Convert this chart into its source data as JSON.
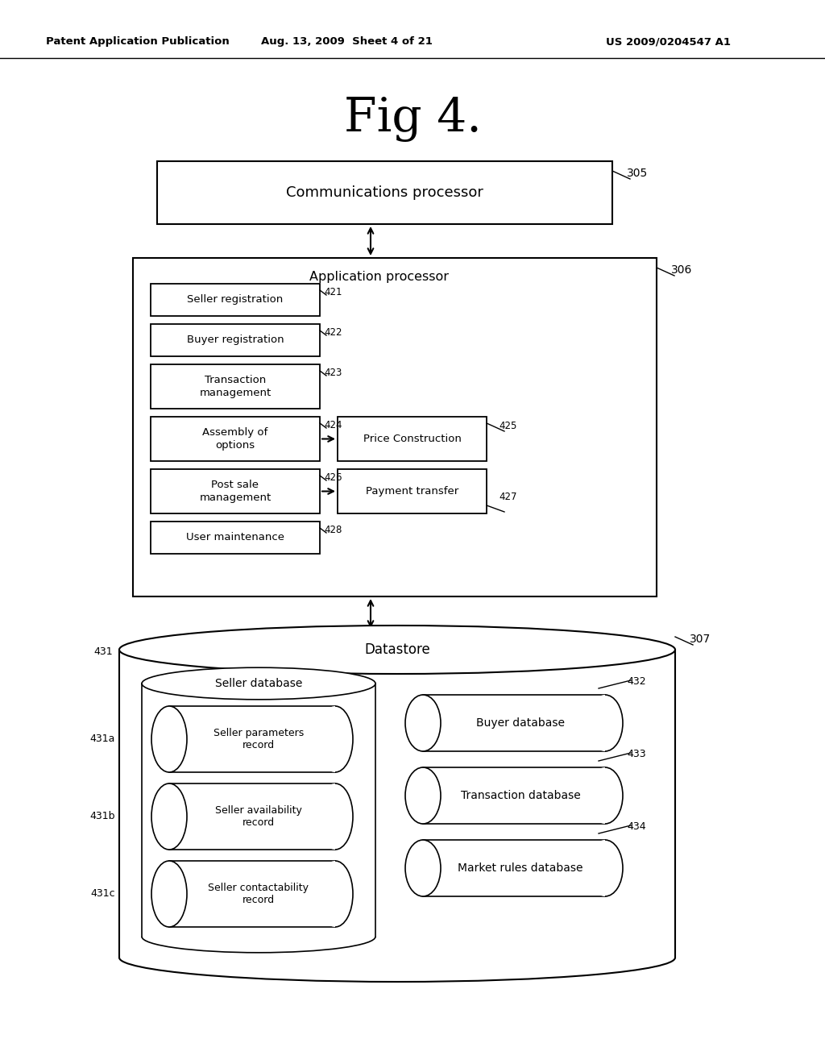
{
  "bg_color": "#ffffff",
  "header_text": "Patent Application Publication",
  "header_date": "Aug. 13, 2009  Sheet 4 of 21",
  "header_patent": "US 2009/0204547 A1",
  "fig_title": "Fig 4.",
  "comm_proc_label": "Communications processor",
  "comm_proc_ref": "305",
  "app_proc_label": "Application processor",
  "app_proc_ref": "306",
  "datastore_label": "Datastore",
  "datastore_ref": "307",
  "db_outer_label": "Seller database",
  "db_outer_ref": "431",
  "db_left": [
    {
      "label": "Seller parameters\nrecord",
      "ref": "431a"
    },
    {
      "label": "Seller availability\nrecord",
      "ref": "431b"
    },
    {
      "label": "Seller contactability\nrecord",
      "ref": "431c"
    }
  ],
  "db_right": [
    {
      "label": "Buyer database",
      "ref": "432"
    },
    {
      "label": "Transaction database",
      "ref": "433"
    },
    {
      "label": "Market rules database",
      "ref": "434"
    }
  ]
}
